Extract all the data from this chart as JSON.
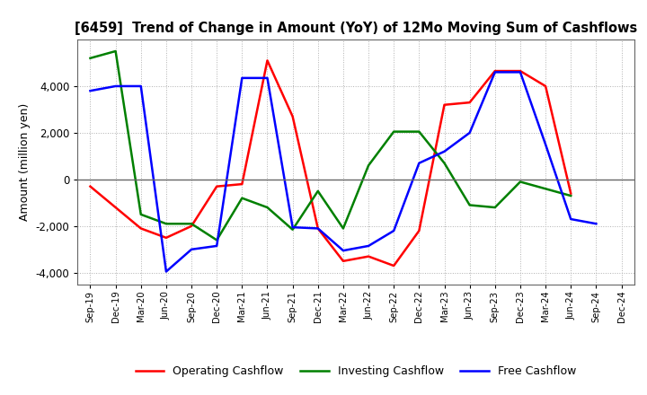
{
  "title": "[6459]  Trend of Change in Amount (YoY) of 12Mo Moving Sum of Cashflows",
  "ylabel": "Amount (million yen)",
  "x_labels": [
    "Sep-19",
    "Dec-19",
    "Mar-20",
    "Jun-20",
    "Sep-20",
    "Dec-20",
    "Mar-21",
    "Jun-21",
    "Sep-21",
    "Dec-21",
    "Mar-22",
    "Jun-22",
    "Sep-22",
    "Dec-22",
    "Mar-23",
    "Jun-23",
    "Sep-23",
    "Dec-23",
    "Mar-24",
    "Jun-24",
    "Sep-24",
    "Dec-24"
  ],
  "operating_cashflow": [
    -300,
    -1200,
    -2100,
    -2500,
    -2000,
    -300,
    -200,
    5100,
    2700,
    -2100,
    -3500,
    -3300,
    -3700,
    -2200,
    3200,
    3300,
    4650,
    4650,
    4000,
    -600,
    null,
    null
  ],
  "investing_cashflow": [
    5200,
    5500,
    -1500,
    -1900,
    -1900,
    -2600,
    -800,
    -1200,
    -2150,
    -500,
    -2100,
    600,
    2050,
    2050,
    700,
    -1100,
    -1200,
    -100,
    -400,
    -700,
    null,
    null
  ],
  "free_cashflow": [
    3800,
    4000,
    4000,
    -3950,
    -3000,
    -2850,
    4350,
    4350,
    -2050,
    -2100,
    -3050,
    -2850,
    -2200,
    700,
    1200,
    2000,
    4600,
    4600,
    1500,
    -1700,
    -1900,
    null
  ],
  "ylim": [
    -4500,
    6000
  ],
  "yticks": [
    -4000,
    -2000,
    0,
    2000,
    4000
  ],
  "operating_color": "#ff0000",
  "investing_color": "#008000",
  "free_color": "#0000ff",
  "bg_color": "#ffffff",
  "plot_bg_color": "#ffffff",
  "grid_color": "#b0b0b0",
  "linewidth": 1.8
}
